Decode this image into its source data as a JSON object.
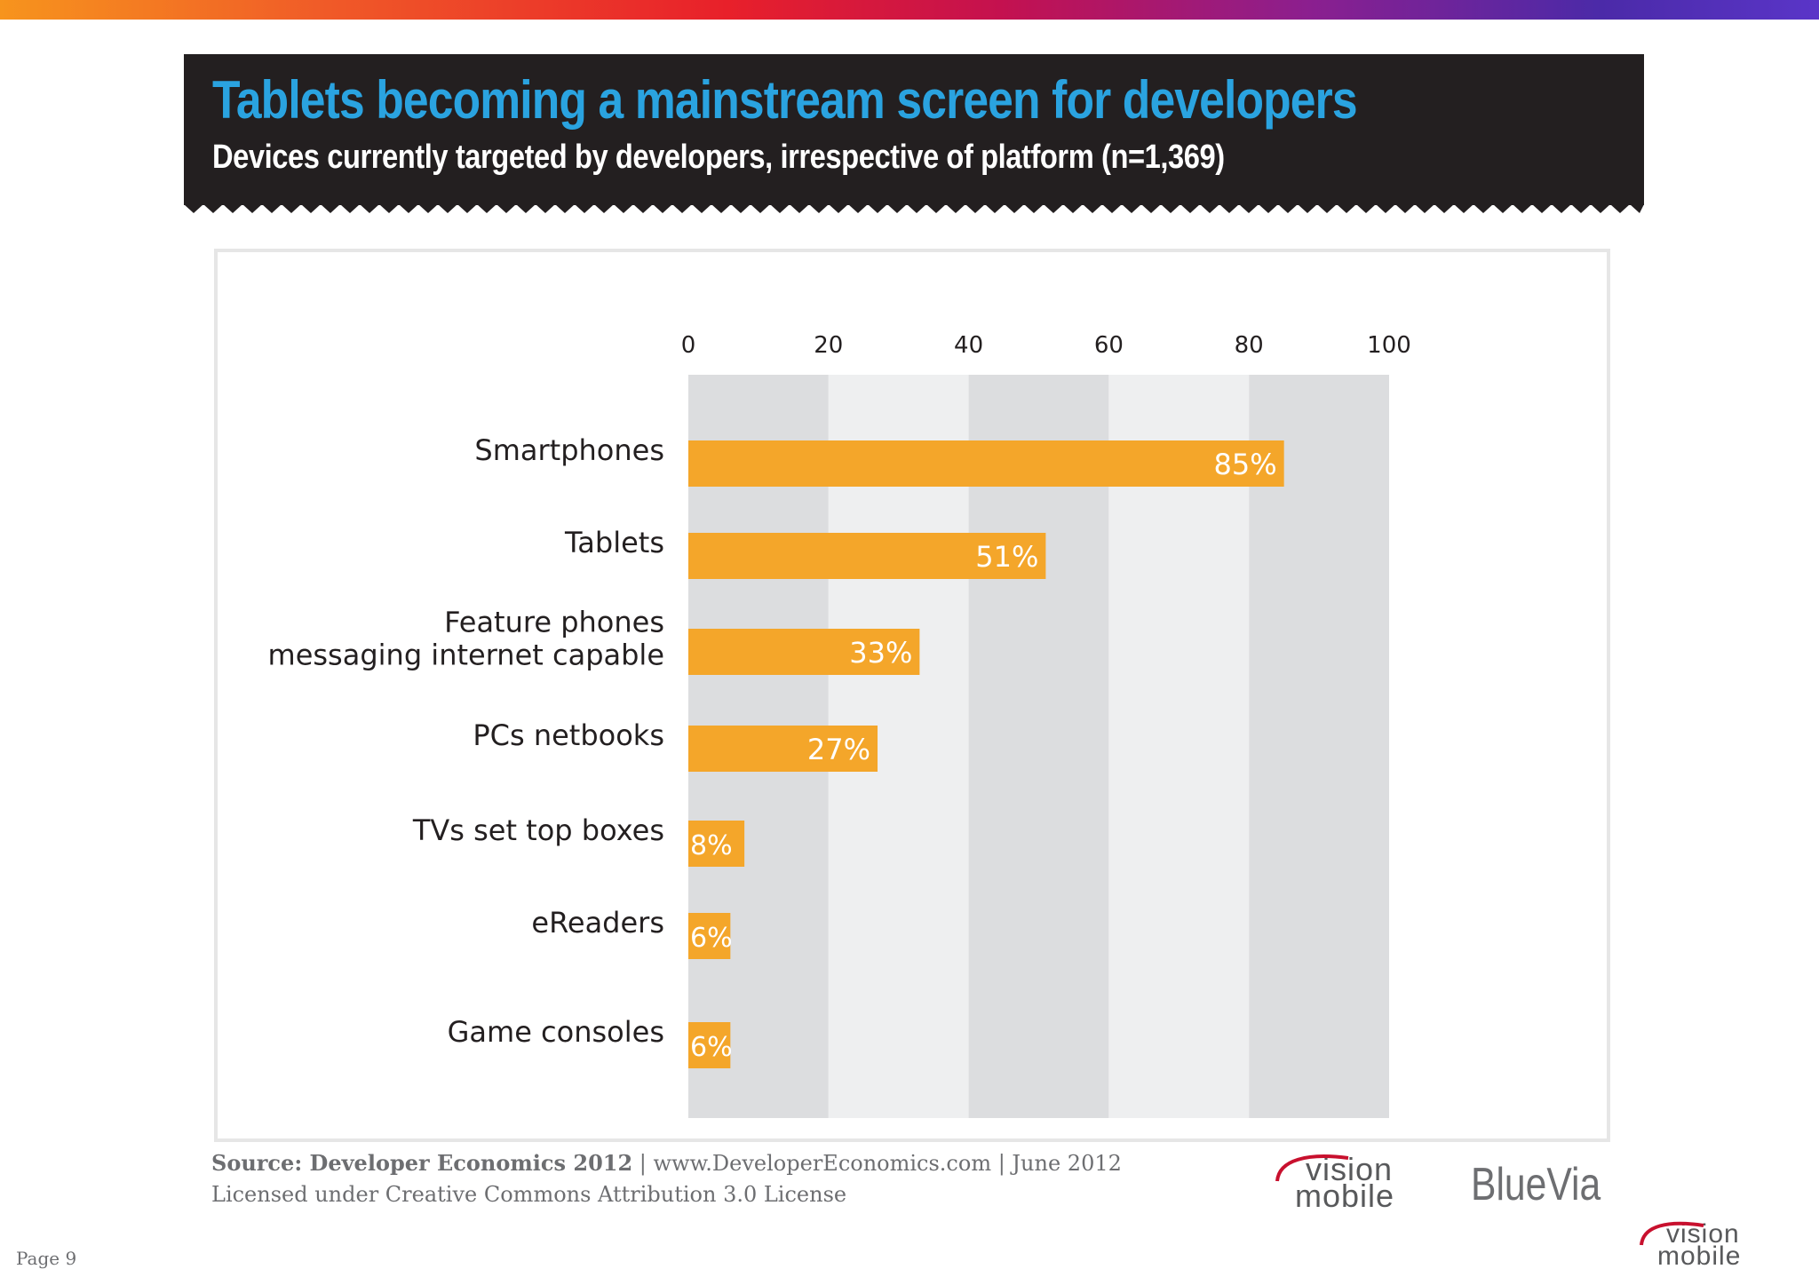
{
  "header": {
    "title": "Tablets becoming a mainstream screen for developers",
    "subtitle": "Devices currently targeted by developers, irrespective of platform (n=1,369)"
  },
  "chart_data": {
    "type": "bar",
    "orientation": "horizontal",
    "title": "Tablets becoming a mainstream screen for developers",
    "subtitle": "Devices currently targeted by developers, irrespective of platform (n=1,369)",
    "categories": [
      "Smartphones",
      "Tablets",
      "Feature phones messaging internet capable",
      "PCs netbooks",
      "TVs set top boxes",
      "eReaders",
      "Game consoles"
    ],
    "category_lines": [
      [
        "Smartphones"
      ],
      [
        "Tablets"
      ],
      [
        "Feature phones",
        "messaging internet capable"
      ],
      [
        "PCs netbooks"
      ],
      [
        "TVs set top boxes"
      ],
      [
        "eReaders"
      ],
      [
        "Game consoles"
      ]
    ],
    "values": [
      85,
      51,
      33,
      27,
      8,
      6,
      6
    ],
    "data_labels": [
      "85%",
      "51%",
      "33%",
      "27%",
      "8%",
      "6%",
      "6%"
    ],
    "xticks": [
      "0",
      "20",
      "40",
      "60",
      "80",
      "100"
    ],
    "xlim": [
      0,
      100
    ],
    "axis_position": "top",
    "xlabel": "",
    "ylabel": "",
    "bar_color": "#f4a62a",
    "band_colors": [
      "#dcdddf",
      "#eeeff0"
    ],
    "grid": false,
    "legend": "none"
  },
  "footer": {
    "source_bold": "Source: Developer Economics 2012",
    "source_rest": " | www.DeveloperEconomics.com | June 2012",
    "license": "Licensed under Creative Commons Attribution 3.0 License",
    "page": "Page 9"
  },
  "logos": {
    "visionmobile_line1": "vision",
    "visionmobile_line2": "mobile",
    "bluevia": "BlueVia"
  },
  "colors": {
    "title": "#2aa3e0",
    "header_bg": "#231f20",
    "label_text": "#231f20",
    "footer_text": "#6d6e71"
  }
}
